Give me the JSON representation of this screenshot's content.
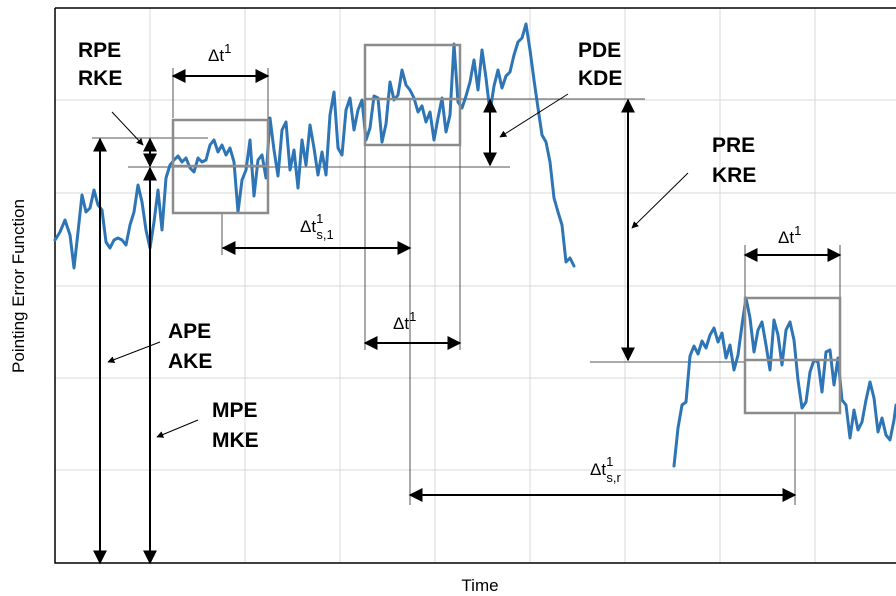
{
  "axes": {
    "x_label": "Time",
    "y_label": "Pointing Error Function"
  },
  "labels": {
    "rpe": "RPE",
    "rke": "RKE",
    "pde": "PDE",
    "kde": "KDE",
    "pre": "PRE",
    "kre": "KRE",
    "ape": "APE",
    "ake": "AKE",
    "mpe": "MPE",
    "mke": "MKE"
  },
  "time_intervals": {
    "window_1": {
      "base": "Δt",
      "sup": "1",
      "sub": ""
    },
    "window_2": {
      "base": "Δt",
      "sup": "1",
      "sub": ""
    },
    "window_3": {
      "base": "Δt",
      "sup": "1",
      "sub": ""
    },
    "separation_stability": {
      "base": "Δt",
      "sup": "1",
      "sub": "s,1"
    },
    "separation_reproducibility": {
      "base": "Δt",
      "sup": "1",
      "sub": "s,r"
    }
  },
  "colors": {
    "signal": "#2e75b6",
    "window": "#8c8c8c",
    "grid": "#d9d9d9",
    "text": "#000000"
  }
}
